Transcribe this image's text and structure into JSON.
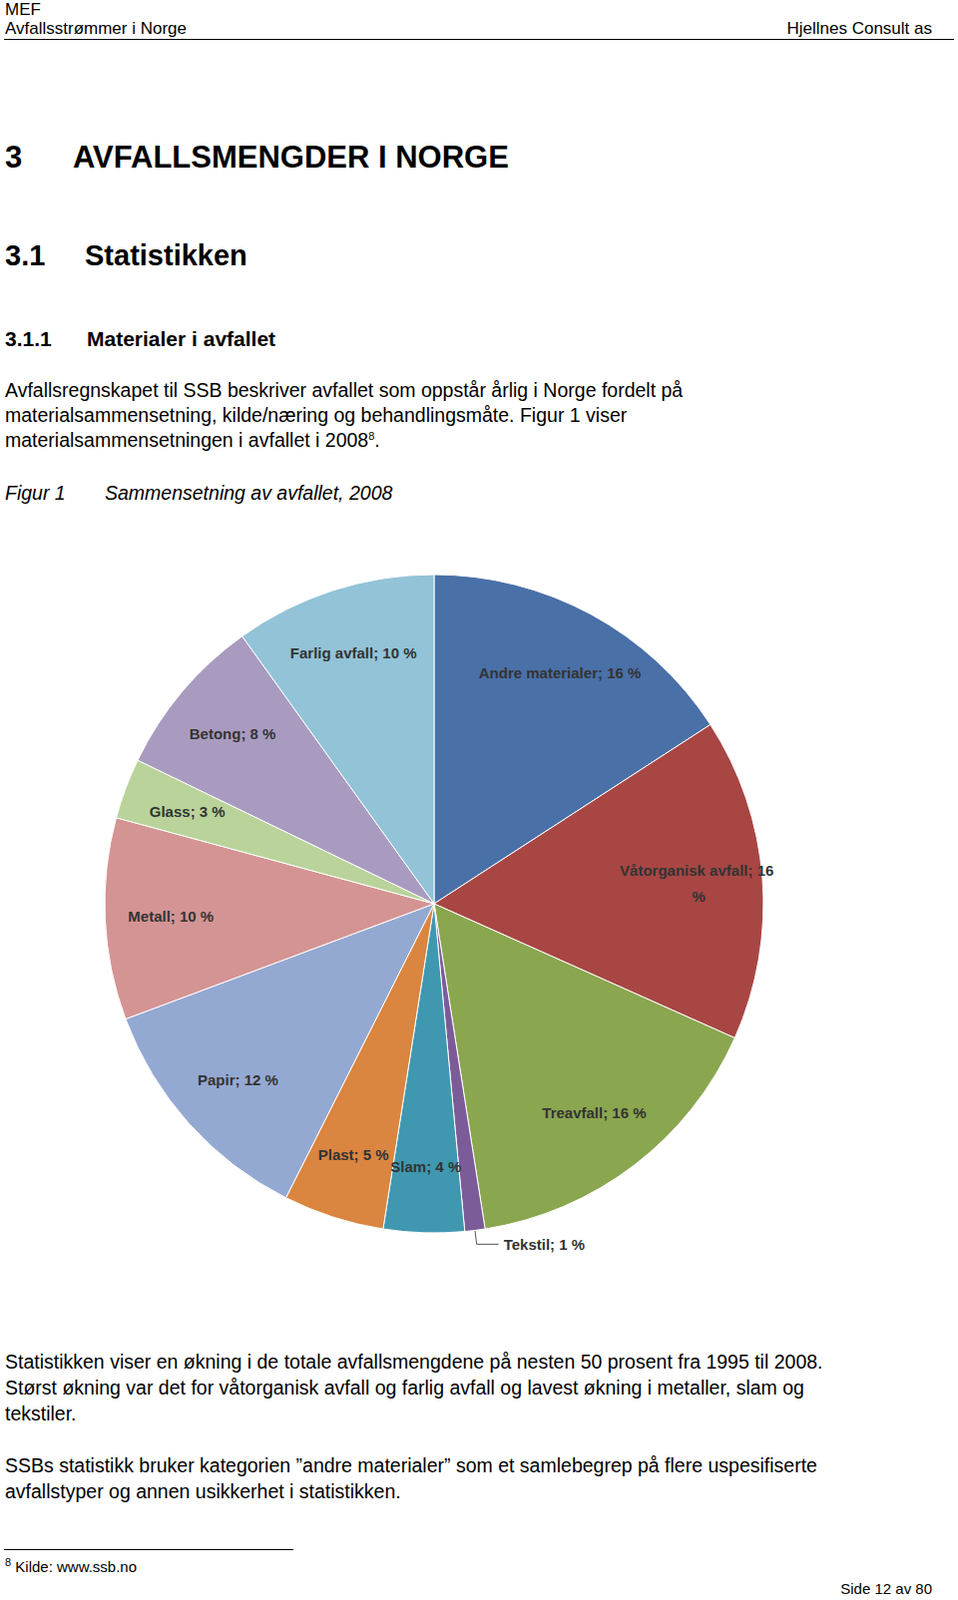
{
  "header": {
    "top_left": [
      "MEF",
      "Avfallsstrømmer i Norge"
    ],
    "top_right": "Hjellnes Consult as"
  },
  "headings": [
    {
      "number": "3",
      "text": "AVFALLSMENGDER I NORGE"
    },
    {
      "number": "3.1",
      "text": "Statistikken"
    },
    {
      "number": "3.1.1",
      "text": "Materialer i avfallet"
    }
  ],
  "intro_lines": [
    "Avfallsregnskapet til SSB beskriver avfallet som oppstår årlig i Norge fordelt på",
    "materialsammensetning, kilde/næring og behandlingsmåte. Figur 1 viser"
  ],
  "intro_last": {
    "text": "materialsammensetningen i avfallet i 2008",
    "footnote_ref": "8",
    "after": "."
  },
  "figure_caption": {
    "label": "Figur 1",
    "text": "Sammensetning av avfallet, 2008"
  },
  "chart_data": {
    "type": "pie",
    "categories": [
      "Andre materialer",
      "Våtorganisk avfall",
      "Treavfall",
      "Tekstil",
      "Slam",
      "Plast",
      "Papir",
      "Metall",
      "Glass",
      "Betong",
      "Farlig avfall"
    ],
    "values": [
      16,
      16,
      16,
      1,
      4,
      5,
      12,
      10,
      3,
      8,
      10
    ],
    "value_labels": [
      "Andre materialer; 16 %",
      "Våtorganisk avfall; 16 %",
      "Treavfall; 16 %",
      "Tekstil; 1 %",
      "Slam; 4 %",
      "Plast; 5 %",
      "Papir; 12 %",
      "Metall; 10 %",
      "Glass; 3 %",
      "Betong; 8 %",
      "Farlig avfall; 10 %"
    ],
    "colors": [
      "#4a70a8",
      "#a84644",
      "#8aa64f",
      "#7b5c99",
      "#3f98b0",
      "#da8540",
      "#94a9d2",
      "#d49493",
      "#b9d39a",
      "#a99bbf",
      "#92c3d6"
    ],
    "data_labels": true
  },
  "body_lines": [
    "Statistikken viser en økning i de totale avfallsmengdene på nesten 50 prosent fra 1995 til 2008.",
    "Størst økning var det for våtorganisk avfall og farlig avfall og lavest økning i metaller, slam og",
    "tekstiler."
  ],
  "note_lines": [
    "SSBs statistikk bruker kategorien ”andre materialer” som et samlebegrep på flere uspesifiserte",
    "avfallstyper og annen usikkerhet i statistikken."
  ],
  "footnote": {
    "ref": "8",
    "text": "Kilde: www.ssb.no"
  },
  "page_footer": "Side 12 av 80"
}
